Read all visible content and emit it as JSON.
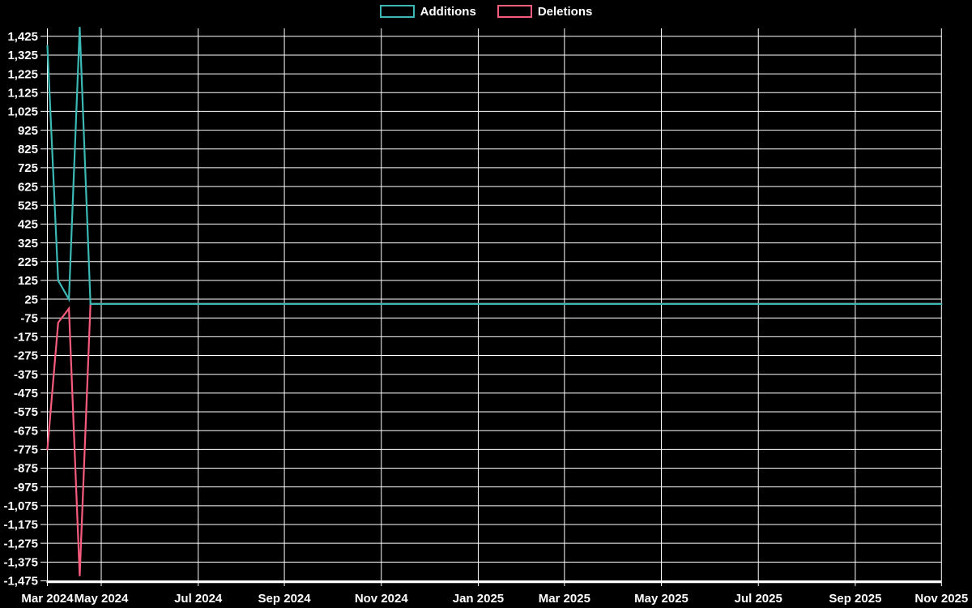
{
  "page": {
    "background": "#000000"
  },
  "legend": {
    "position": "top-center",
    "items": [
      {
        "label": "Additions",
        "color": "#3cb9b4"
      },
      {
        "label": "Deletions",
        "color": "#f85c7d"
      }
    ]
  },
  "chart_data": {
    "type": "line",
    "title": "",
    "xlabel": "",
    "ylabel": "",
    "grid": true,
    "grid_color": "#ffffff",
    "text_color": "#ffffff",
    "background": "#000000",
    "x_axis": {
      "kind": "weekly-time",
      "num_weeks": 84,
      "tick_labels": [
        "Mar 2024",
        "May 2024",
        "Jul 2024",
        "Sep 2024",
        "Nov 2024",
        "Jan 2025",
        "Mar 2025",
        "May 2025",
        "Jul 2025",
        "Sep 2025",
        "Nov 2025"
      ],
      "tick_week_indices": [
        0,
        5,
        14,
        22,
        31,
        40,
        48,
        57,
        66,
        75,
        83
      ]
    },
    "y_axis": {
      "min_tick": -1475,
      "max_tick": 1425,
      "step": 100,
      "value_range": [
        -1475,
        1475
      ],
      "tick_labels": [
        "1,425",
        "1,325",
        "1,225",
        "1,125",
        "1,025",
        "925",
        "825",
        "725",
        "625",
        "525",
        "425",
        "325",
        "225",
        "125",
        "25",
        "-75",
        "-175",
        "-275",
        "-375",
        "-475",
        "-575",
        "-675",
        "-775",
        "-875",
        "-975",
        "-1,075",
        "-1,175",
        "-1,275",
        "-1,375",
        "-1,475"
      ]
    },
    "series": [
      {
        "name": "Additions",
        "color": "#3cb9b4",
        "values": [
          1375,
          125,
          25,
          1475,
          0,
          0,
          0,
          0,
          0,
          0,
          0,
          0,
          0,
          0,
          0,
          0,
          0,
          0,
          0,
          0,
          0,
          0,
          0,
          0,
          0,
          0,
          0,
          0,
          0,
          0,
          0,
          0,
          0,
          0,
          0,
          0,
          0,
          0,
          0,
          0,
          0,
          0,
          0,
          0,
          0,
          0,
          0,
          0,
          0,
          0,
          0,
          0,
          0,
          0,
          0,
          0,
          0,
          0,
          0,
          0,
          0,
          0,
          0,
          0,
          0,
          0,
          0,
          0,
          0,
          0,
          0,
          0,
          0,
          0,
          0,
          0,
          0,
          0,
          0,
          0,
          0,
          0,
          0,
          0
        ]
      },
      {
        "name": "Deletions",
        "color": "#f85c7d",
        "values": [
          -775,
          -100,
          -25,
          -1450,
          0,
          0,
          0,
          0,
          0,
          0,
          0,
          0,
          0,
          0,
          0,
          0,
          0,
          0,
          0,
          0,
          0,
          0,
          0,
          0,
          0,
          0,
          0,
          0,
          0,
          0,
          0,
          0,
          0,
          0,
          0,
          0,
          0,
          0,
          0,
          0,
          0,
          0,
          0,
          0,
          0,
          0,
          0,
          0,
          0,
          0,
          0,
          0,
          0,
          0,
          0,
          0,
          0,
          0,
          0,
          0,
          0,
          0,
          0,
          0,
          0,
          0,
          0,
          0,
          0,
          0,
          0,
          0,
          0,
          0,
          0,
          0,
          0,
          0,
          0,
          0,
          0,
          0,
          0,
          0
        ]
      }
    ]
  }
}
